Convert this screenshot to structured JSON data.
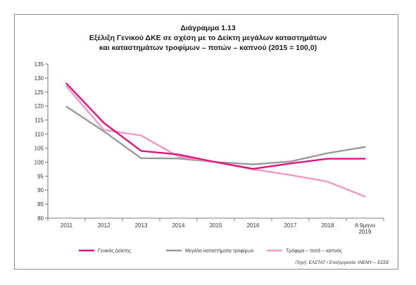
{
  "chart_data": {
    "type": "line",
    "title_lines": [
      "Διάγραμμα 1.13",
      "Εξέλιξη Γενικού ΔΚΕ σε σχέση με το Δείκτη μεγάλων καταστημάτων",
      "και καταστημάτων τροφίμων – ποτών – καπνού  (2015 = 100,0)"
    ],
    "categories": [
      "2011",
      "2012",
      "2013",
      "2014",
      "2015",
      "2016",
      "2017",
      "2018",
      "Α 9μηνο 2019"
    ],
    "category_labels": [
      [
        "2011"
      ],
      [
        "2012"
      ],
      [
        "2013"
      ],
      [
        "2014"
      ],
      [
        "2015"
      ],
      [
        "2016"
      ],
      [
        "2017"
      ],
      [
        "2018"
      ],
      [
        "Α 9μηνο",
        "2019"
      ]
    ],
    "ylim": [
      80,
      135
    ],
    "yticks": [
      80,
      85,
      90,
      95,
      100,
      105,
      110,
      115,
      120,
      125,
      130,
      135
    ],
    "grid": false,
    "legend_position": "bottom",
    "series": [
      {
        "name": "Γενικός Δείκτης",
        "color": "#e0147f",
        "values": [
          128.0,
          114.0,
          104.0,
          102.7,
          100.0,
          97.6,
          99.5,
          101.2,
          101.2
        ]
      },
      {
        "name": "Μεγάλα καταστήματα τροφίμων",
        "color": "#999999",
        "values": [
          119.8,
          111.0,
          101.4,
          101.3,
          100.0,
          99.2,
          100.2,
          103.2,
          105.4
        ]
      },
      {
        "name": "Τρόφιμα – ποτά – καπνός",
        "color": "#f09ac3",
        "values": [
          127.0,
          111.5,
          109.5,
          102.0,
          100.0,
          97.4,
          95.4,
          93.0,
          87.7
        ]
      }
    ],
    "source": "Πηγή: ΕΛΣΤΑΤ / Επεξεργασία: ΙΝΕΜΥ – ΕΣΕΕ"
  }
}
